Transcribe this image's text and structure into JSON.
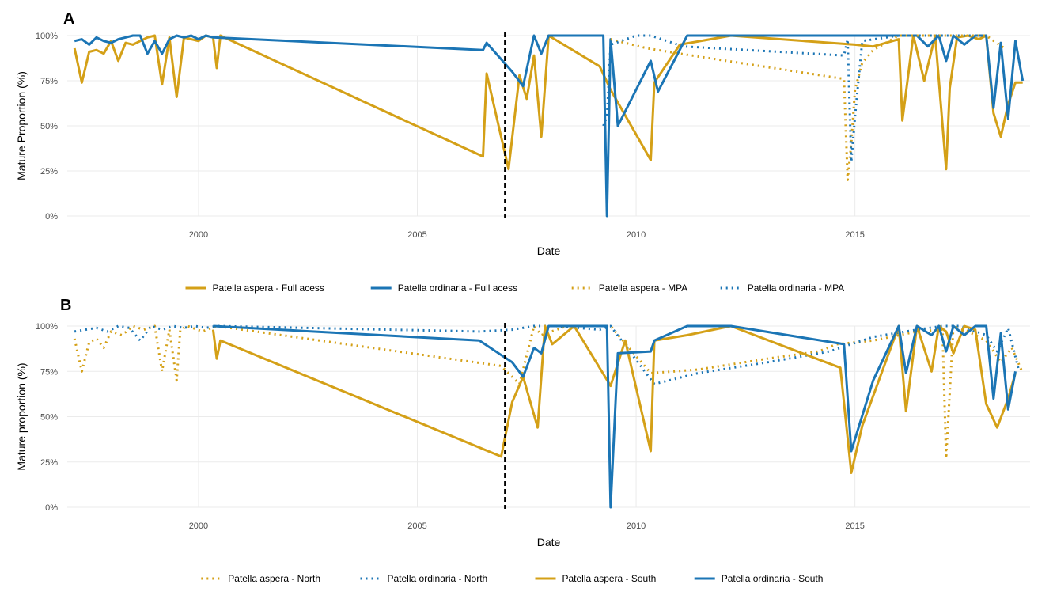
{
  "colors": {
    "aspera": "#D4A017",
    "ordinaria": "#1B75B5",
    "grid": "#EBEBEB",
    "vline": "#000000"
  },
  "chart_data": [
    {
      "type": "line",
      "panel_label": "A",
      "title": "",
      "xlabel": "Date",
      "ylabel": "Mature Proportion (%)",
      "xlim": [
        "1997-01-01",
        "2018-12-31"
      ],
      "ylim": [
        0,
        100
      ],
      "x_ticks": [
        "2000",
        "2005",
        "2010",
        "2015"
      ],
      "y_ticks": [
        "0%",
        "25%",
        "50%",
        "75%",
        "100%"
      ],
      "vline_x": "2007-01-01",
      "grid": true,
      "legend_position": "bottom",
      "series": [
        {
          "name": "Patella aspera - Full acess",
          "color": "aspera",
          "linetype": "solid",
          "x": [
            "1997-03",
            "1997-05",
            "1997-07",
            "1997-09",
            "1997-11",
            "1998-01",
            "1998-03",
            "1998-05",
            "1998-07",
            "1998-09",
            "1998-11",
            "1999-01",
            "1999-03",
            "1999-05",
            "1999-07",
            "1999-09",
            "1999-11",
            "2000-01",
            "2000-03",
            "2000-05",
            "2000-06",
            "2000-07",
            "2006-07",
            "2006-08",
            "2007-02",
            "2007-05",
            "2007-07",
            "2007-09",
            "2007-11",
            "2008-01",
            "2009-03",
            "2009-06",
            "2010-05",
            "2010-06",
            "2011-01",
            "2012-03",
            "2015-01",
            "2015-06",
            "2016-01",
            "2016-02",
            "2016-05",
            "2016-08",
            "2016-11",
            "2017-02",
            "2017-03",
            "2017-05",
            "2017-08",
            "2017-11",
            "2018-01",
            "2018-03",
            "2018-05",
            "2018-07",
            "2018-09",
            "2018-11"
          ],
          "y": [
            93,
            74,
            91,
            92,
            90,
            97,
            86,
            96,
            95,
            97,
            99,
            100,
            73,
            99,
            66,
            99,
            98,
            97,
            100,
            99,
            82,
            100,
            33,
            79,
            26,
            78,
            65,
            89,
            44,
            100,
            83,
            70,
            31,
            74,
            95,
            100,
            95,
            94,
            98,
            53,
            100,
            75,
            100,
            26,
            71,
            99,
            100,
            98,
            100,
            57,
            44,
            62,
            74,
            74
          ]
        },
        {
          "name": "Patella ordinaria - Full acess",
          "color": "ordinaria",
          "linetype": "solid",
          "x": [
            "1997-03",
            "1997-05",
            "1997-07",
            "1997-09",
            "1997-11",
            "1998-01",
            "1998-03",
            "1998-05",
            "1998-07",
            "1998-09",
            "1998-11",
            "1999-01",
            "1999-03",
            "1999-05",
            "1999-07",
            "1999-09",
            "1999-11",
            "2000-01",
            "2000-03",
            "2000-05",
            "2006-07",
            "2006-08",
            "2007-03",
            "2007-06",
            "2007-09",
            "2007-11",
            "2008-01",
            "2009-04",
            "2009-05",
            "2009-06",
            "2009-08",
            "2010-05",
            "2010-07",
            "2011-03",
            "2016-01",
            "2016-06",
            "2016-09",
            "2016-12",
            "2017-02",
            "2017-04",
            "2017-07",
            "2017-10",
            "2018-01",
            "2018-03",
            "2018-05",
            "2018-07",
            "2018-09",
            "2018-11"
          ],
          "y": [
            97,
            98,
            95,
            99,
            97,
            96,
            98,
            99,
            100,
            100,
            90,
            97,
            90,
            98,
            100,
            99,
            100,
            98,
            100,
            99,
            92,
            96,
            80,
            72,
            100,
            90,
            100,
            100,
            0,
            98,
            50,
            86,
            69,
            100,
            100,
            100,
            94,
            100,
            86,
            100,
            95,
            100,
            100,
            60,
            96,
            54,
            97,
            75
          ]
        },
        {
          "name": "Patella aspera - MPA",
          "color": "aspera",
          "linetype": "dotted",
          "x": [
            "2009-06",
            "2010-04",
            "2011-01",
            "2014-10",
            "2014-11",
            "2014-12",
            "2015-01",
            "2015-03",
            "2015-06",
            "2016-01",
            "2017-01",
            "2018-01",
            "2018-06"
          ],
          "y": [
            98,
            93,
            90,
            76,
            20,
            40,
            70,
            85,
            92,
            100,
            100,
            100,
            93
          ]
        },
        {
          "name": "Patella ordinaria - MPA",
          "color": "ordinaria",
          "linetype": "dotted",
          "x": [
            "2009-04",
            "2009-05",
            "2009-06",
            "2010-01",
            "2010-05",
            "2011-02",
            "2014-10",
            "2014-11",
            "2014-12",
            "2015-01",
            "2015-03",
            "2016-01",
            "2017-01",
            "2018-01"
          ],
          "y": [
            50,
            55,
            95,
            100,
            100,
            94,
            89,
            98,
            30,
            55,
            97,
            100,
            100,
            100
          ]
        }
      ]
    },
    {
      "type": "line",
      "panel_label": "B",
      "title": "",
      "xlabel": "Date",
      "ylabel": "Mature proportion (%)",
      "xlim": [
        "1997-01-01",
        "2018-12-31"
      ],
      "ylim": [
        0,
        100
      ],
      "x_ticks": [
        "2000",
        "2005",
        "2010",
        "2015"
      ],
      "y_ticks": [
        "0%",
        "25%",
        "50%",
        "75%",
        "100%"
      ],
      "vline_x": "2007-01-01",
      "grid": true,
      "legend_position": "bottom",
      "series": [
        {
          "name": "Patella aspera - North",
          "color": "aspera",
          "linetype": "dotted",
          "x": [
            "1997-03",
            "1997-05",
            "1997-07",
            "1997-09",
            "1997-11",
            "1998-01",
            "1998-04",
            "1998-07",
            "1998-10",
            "1999-01",
            "1999-03",
            "1999-05",
            "1999-07",
            "1999-08",
            "1999-10",
            "2000-02",
            "2000-06",
            "2006-12",
            "2007-05",
            "2007-09",
            "2007-11",
            "2008-06",
            "2009-03",
            "2009-06",
            "2010-05",
            "2011-06",
            "2013-01",
            "2014-03",
            "2014-08",
            "2015-06",
            "2016-06",
            "2017-01",
            "2017-02",
            "2017-04",
            "2017-08",
            "2018-01",
            "2018-05",
            "2018-08",
            "2018-11"
          ],
          "y": [
            93,
            75,
            91,
            93,
            88,
            97,
            95,
            100,
            98,
            100,
            75,
            98,
            70,
            98,
            100,
            97,
            100,
            78,
            68,
            100,
            95,
            100,
            100,
            100,
            74,
            76,
            82,
            86,
            90,
            92,
            97,
            98,
            27,
            100,
            97,
            92,
            80,
            88,
            74
          ]
        },
        {
          "name": "Patella ordinaria - North",
          "color": "ordinaria",
          "linetype": "dotted",
          "x": [
            "1997-03",
            "1997-06",
            "1997-09",
            "1997-12",
            "1998-03",
            "1998-06",
            "1998-09",
            "1998-12",
            "1999-03",
            "1999-06",
            "1999-09",
            "1999-12",
            "2000-03",
            "2000-06",
            "2006-06",
            "2007-03",
            "2007-09",
            "2008-03",
            "2009-03",
            "2009-06",
            "2010-06",
            "2011-06",
            "2013-01",
            "2014-06",
            "2015-06",
            "2016-06",
            "2017-01",
            "2017-06",
            "2018-01",
            "2018-04",
            "2018-07",
            "2018-10"
          ],
          "y": [
            97,
            98,
            99,
            97,
            100,
            99,
            92,
            100,
            98,
            100,
            99,
            100,
            99,
            100,
            97,
            98,
            100,
            100,
            98,
            100,
            68,
            74,
            80,
            86,
            94,
            98,
            100,
            100,
            95,
            86,
            99,
            75
          ]
        },
        {
          "name": "Patella aspera - South",
          "color": "aspera",
          "linetype": "solid",
          "x": [
            "2000-05",
            "2000-06",
            "2000-07",
            "2006-12",
            "2007-03",
            "2007-06",
            "2007-10",
            "2007-12",
            "2008-02",
            "2008-08",
            "2009-06",
            "2009-10",
            "2010-05",
            "2010-06",
            "2011-03",
            "2012-03",
            "2014-09",
            "2014-12",
            "2015-03",
            "2016-01",
            "2016-03",
            "2016-06",
            "2016-10",
            "2016-12",
            "2017-02",
            "2017-04",
            "2017-07",
            "2017-10",
            "2018-01",
            "2018-04",
            "2018-07",
            "2018-09"
          ],
          "y": [
            98,
            82,
            92,
            28,
            58,
            72,
            44,
            100,
            90,
            100,
            67,
            92,
            31,
            92,
            95,
            100,
            77,
            19,
            45,
            100,
            53,
            100,
            75,
            100,
            97,
            85,
            100,
            98,
            57,
            44,
            60,
            74
          ]
        },
        {
          "name": "Patella ordinaria - South",
          "color": "ordinaria",
          "linetype": "solid",
          "x": [
            "2000-05",
            "2006-06",
            "2007-03",
            "2007-06",
            "2007-09",
            "2007-11",
            "2008-01",
            "2009-05",
            "2009-06",
            "2009-08",
            "2010-05",
            "2010-06",
            "2011-03",
            "2012-03",
            "2014-10",
            "2014-12",
            "2015-06",
            "2016-01",
            "2016-03",
            "2016-06",
            "2016-10",
            "2016-12",
            "2017-02",
            "2017-04",
            "2017-07",
            "2017-10",
            "2018-01",
            "2018-03",
            "2018-05",
            "2018-07",
            "2018-09"
          ],
          "y": [
            100,
            92,
            80,
            72,
            88,
            85,
            100,
            100,
            0,
            85,
            86,
            92,
            100,
            100,
            90,
            31,
            70,
            100,
            74,
            100,
            95,
            100,
            86,
            100,
            95,
            100,
            100,
            60,
            96,
            54,
            75
          ]
        }
      ]
    }
  ],
  "legends": [
    {
      "items": [
        {
          "label": "Patella aspera - Full acess",
          "color": "aspera",
          "linetype": "solid"
        },
        {
          "label": "Patella ordinaria - Full acess",
          "color": "ordinaria",
          "linetype": "solid"
        },
        {
          "label": "Patella aspera - MPA",
          "color": "aspera",
          "linetype": "dotted"
        },
        {
          "label": "Patella ordinaria - MPA",
          "color": "ordinaria",
          "linetype": "dotted"
        }
      ]
    },
    {
      "items": [
        {
          "label": "Patella aspera - North",
          "color": "aspera",
          "linetype": "dotted"
        },
        {
          "label": "Patella ordinaria - North",
          "color": "ordinaria",
          "linetype": "dotted"
        },
        {
          "label": "Patella aspera - South",
          "color": "aspera",
          "linetype": "solid"
        },
        {
          "label": "Patella ordinaria - South",
          "color": "ordinaria",
          "linetype": "solid"
        }
      ]
    }
  ]
}
